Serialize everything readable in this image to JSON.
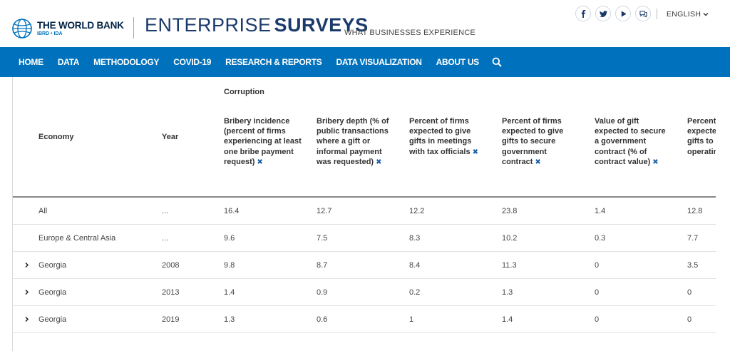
{
  "brand": {
    "bank_name": "THE WORLD BANK",
    "bank_sub": "IBRD • IDA",
    "title_thin": "ENTERPRISE",
    "title_bold": "SURVEYS",
    "tagline": "WHAT BUSINESSES EXPERIENCE"
  },
  "social": [
    "facebook-icon",
    "twitter-icon",
    "youtube-icon",
    "chat-icon"
  ],
  "language": "ENGLISH",
  "nav": {
    "items": [
      "HOME",
      "DATA",
      "METHODOLOGY",
      "COVID-19",
      "RESEARCH & REPORTS",
      "DATA VISUALIZATION",
      "ABOUT US"
    ]
  },
  "table": {
    "group": "Corruption",
    "col_economy": "Economy",
    "col_year": "Year",
    "columns": [
      "Bribery incidence (percent of firms experiencing at least one bribe payment request)",
      "Bribery depth (% of public transactions where a gift or informal payment was requested)",
      "Percent of firms expected to give gifts in meetings with tax officials",
      "Percent of firms expected to give gifts to secure government contract",
      "Value of gift expected to secure a government contract (% of contract value)",
      "Percent of firms expected to give gifts to get an operating license"
    ],
    "remove_mark": "✖",
    "rows": [
      {
        "economy": "All",
        "year": "...",
        "values": [
          "16.4",
          "12.7",
          "12.2",
          "23.8",
          "1.4",
          "12.8"
        ],
        "expandable": false
      },
      {
        "economy": "Europe & Central Asia",
        "year": "...",
        "values": [
          "9.6",
          "7.5",
          "8.3",
          "10.2",
          "0.3",
          "7.7"
        ],
        "expandable": false
      },
      {
        "economy": "Georgia",
        "year": "2008",
        "values": [
          "9.8",
          "8.7",
          "8.4",
          "11.3",
          "0",
          "3.5"
        ],
        "expandable": true
      },
      {
        "economy": "Georgia",
        "year": "2013",
        "values": [
          "1.4",
          "0.9",
          "0.2",
          "1.3",
          "0",
          "0"
        ],
        "expandable": true
      },
      {
        "economy": "Georgia",
        "year": "2019",
        "values": [
          "1.3",
          "0.6",
          "1",
          "1.4",
          "0",
          "0"
        ],
        "expandable": true
      }
    ]
  }
}
